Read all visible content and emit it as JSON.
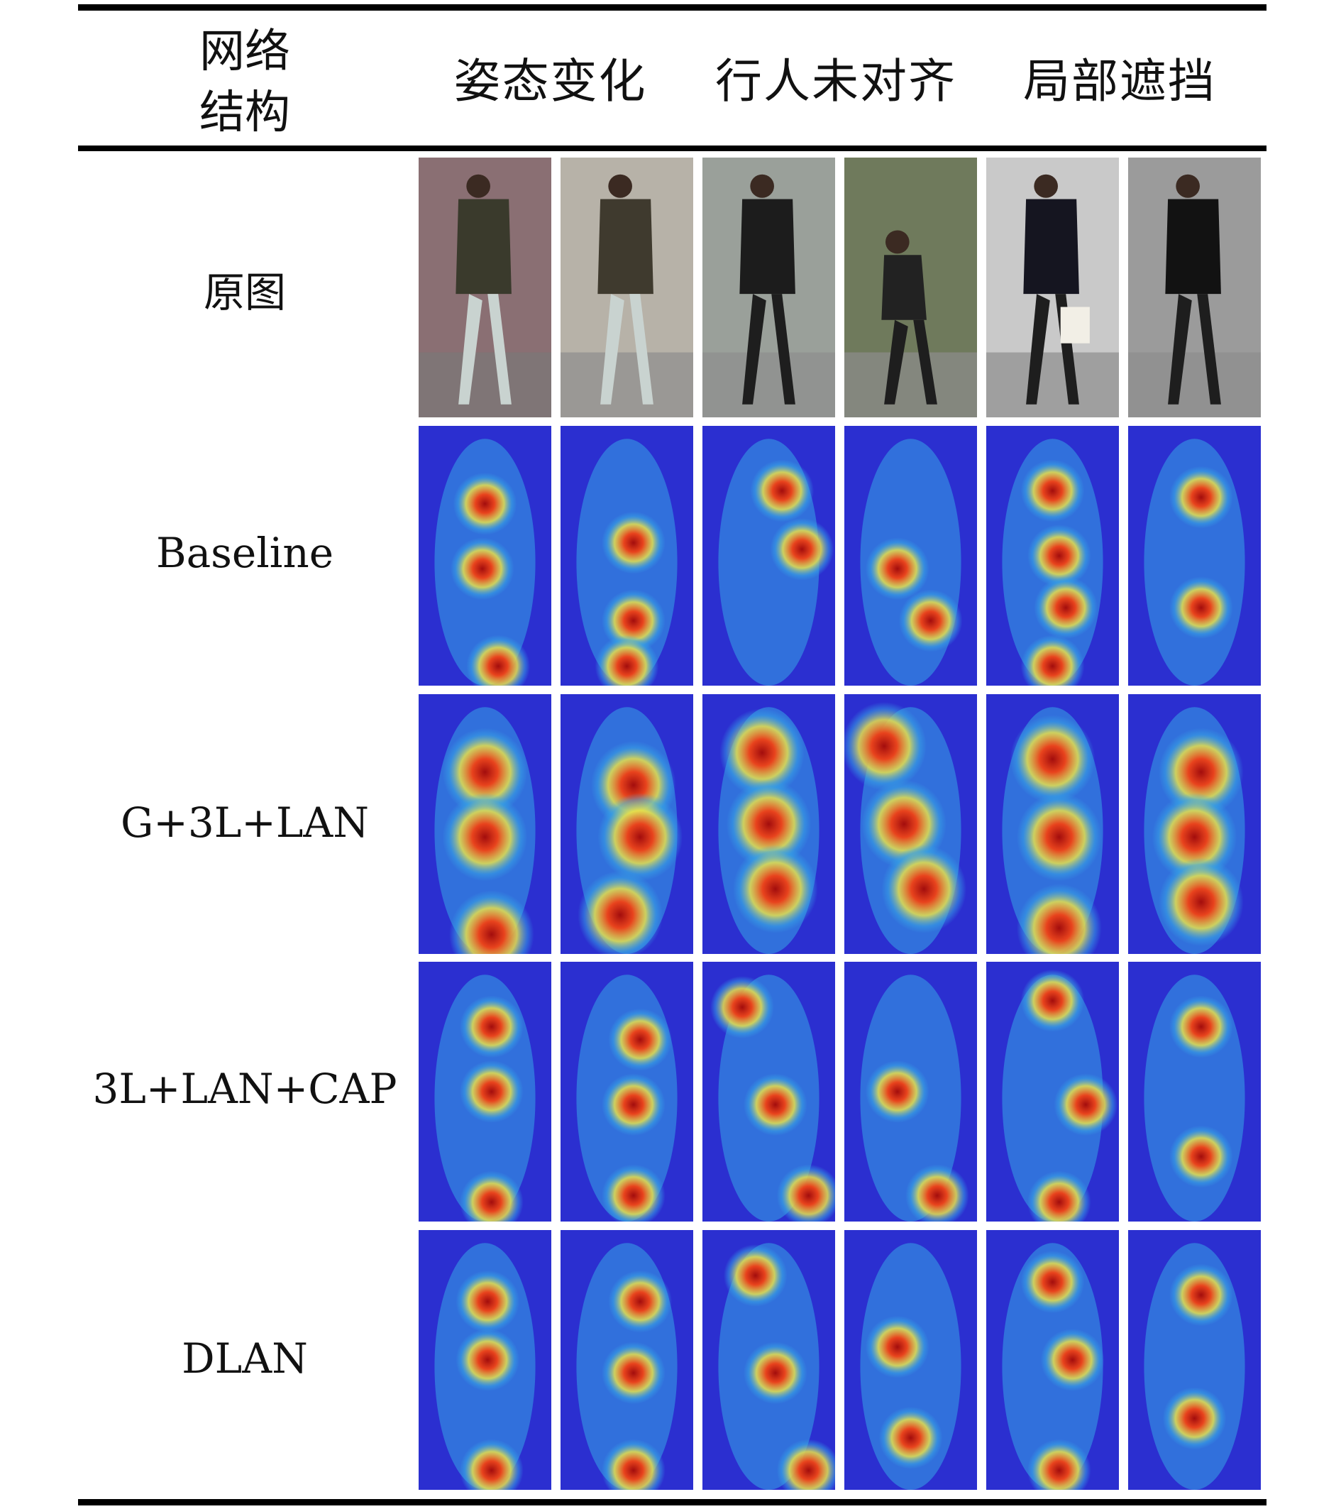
{
  "header": {
    "col0": [
      "网络",
      "结构"
    ],
    "groups": [
      "姿态变化",
      "行人未对齐",
      "局部遮挡"
    ]
  },
  "rows": [
    {
      "label": "原图",
      "type": "photo"
    },
    {
      "label": "Baseline",
      "type": "heatmap"
    },
    {
      "label": "G+3L+LAN",
      "type": "heatmap"
    },
    {
      "label": "3L+LAN+CAP",
      "type": "heatmap"
    },
    {
      "label": "DLAN",
      "type": "heatmap"
    }
  ],
  "colors": {
    "heat_cold": "#2b2fd0",
    "heat_cool": "#37a6e6",
    "heat_mid": "#e8e14a",
    "heat_hot": "#e8431d",
    "heat_peak": "#a30d0d"
  }
}
